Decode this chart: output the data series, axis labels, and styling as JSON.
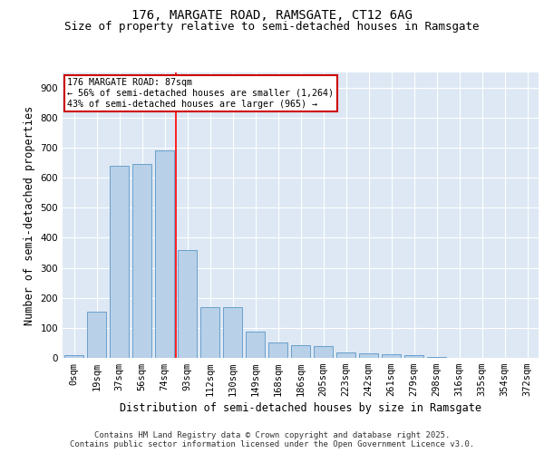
{
  "title1": "176, MARGATE ROAD, RAMSGATE, CT12 6AG",
  "title2": "Size of property relative to semi-detached houses in Ramsgate",
  "xlabel": "Distribution of semi-detached houses by size in Ramsgate",
  "ylabel": "Number of semi-detached properties",
  "categories": [
    "0sqm",
    "19sqm",
    "37sqm",
    "56sqm",
    "74sqm",
    "93sqm",
    "112sqm",
    "130sqm",
    "149sqm",
    "168sqm",
    "186sqm",
    "205sqm",
    "223sqm",
    "242sqm",
    "261sqm",
    "279sqm",
    "298sqm",
    "316sqm",
    "335sqm",
    "354sqm",
    "372sqm"
  ],
  "values": [
    8,
    155,
    640,
    645,
    690,
    360,
    170,
    170,
    88,
    50,
    42,
    38,
    18,
    14,
    12,
    10,
    4,
    0,
    0,
    0,
    0
  ],
  "bar_color": "#b8d0e8",
  "bar_edge_color": "#6aa0cc",
  "red_line_x": 4.5,
  "annotation_title": "176 MARGATE ROAD: 87sqm",
  "annotation_line1": "← 56% of semi-detached houses are smaller (1,264)",
  "annotation_line2": "43% of semi-detached houses are larger (965) →",
  "annotation_box_color": "#ffffff",
  "annotation_box_edge": "#cc0000",
  "ylim": [
    0,
    950
  ],
  "yticks": [
    0,
    100,
    200,
    300,
    400,
    500,
    600,
    700,
    800,
    900
  ],
  "background_color": "#dde8f4",
  "footer1": "Contains HM Land Registry data © Crown copyright and database right 2025.",
  "footer2": "Contains public sector information licensed under the Open Government Licence v3.0.",
  "grid_color": "#ffffff",
  "title_fontsize": 10,
  "subtitle_fontsize": 9,
  "axis_label_fontsize": 8.5,
  "tick_fontsize": 7.5,
  "footer_fontsize": 6.5
}
